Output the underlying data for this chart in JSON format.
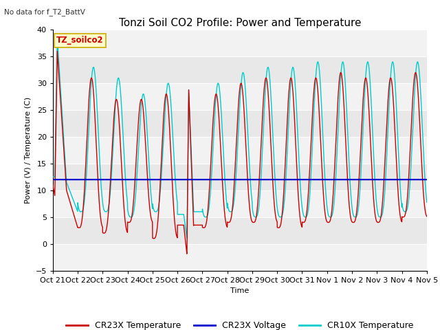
{
  "title": "Tonzi Soil CO2 Profile: Power and Temperature",
  "subtitle": "No data for f_T2_BattV",
  "ylabel": "Power (V) / Temperature (C)",
  "xlabel": "Time",
  "ylim": [
    -5,
    40
  ],
  "yticks": [
    -5,
    0,
    5,
    10,
    15,
    20,
    25,
    30,
    35,
    40
  ],
  "x_tick_labels": [
    "Oct 21",
    "Oct 22",
    "Oct 23",
    "Oct 24",
    "Oct 25",
    "Oct 26",
    "Oct 27",
    "Oct 28",
    "Oct 29",
    "Oct 30",
    "Oct 31",
    "Nov 1",
    "Nov 2",
    "Nov 3",
    "Nov 4",
    "Nov 5"
  ],
  "annotation_label": "TZ_soilco2",
  "annotation_bg": "#ffffcc",
  "annotation_border": "#ccaa00",
  "cr23x_color": "#cc0000",
  "cr10x_color": "#00cccc",
  "voltage_color": "#0000cc",
  "voltage_value": 12.0,
  "plot_bg": "#e8e8e8",
  "band_color": "#d0d0d0",
  "title_fontsize": 11,
  "axis_fontsize": 8,
  "legend_fontsize": 9
}
